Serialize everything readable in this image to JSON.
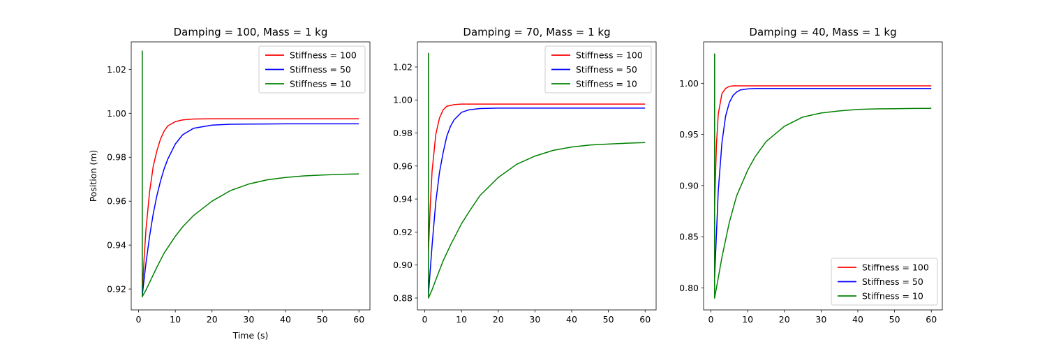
{
  "chart_data": [
    {
      "type": "line",
      "title": "Damping = 100, Mass = 1 kg",
      "xlabel": "Time (s)",
      "ylabel": "Position (m)",
      "xlim": [
        -2,
        63
      ],
      "ylim": [
        0.9105,
        1.0325
      ],
      "xticks": [
        0,
        10,
        20,
        30,
        40,
        50,
        60
      ],
      "yticks": [
        0.92,
        0.94,
        0.96,
        0.98,
        1.0,
        1.02
      ],
      "ytick_labels": [
        "0.92",
        "0.94",
        "0.96",
        "0.98",
        "1.00",
        "1.02"
      ],
      "legend": "top-right",
      "series": [
        {
          "name": "Stiffness = 100",
          "color": "#ff0000",
          "points": [
            [
              1.0,
              1.0285
            ],
            [
              1.0,
              0.9165
            ],
            [
              1.5,
              0.9337
            ],
            [
              2,
              0.9468
            ],
            [
              3,
              0.9643
            ],
            [
              4,
              0.9759
            ],
            [
              5,
              0.983
            ],
            [
              6,
              0.9884
            ],
            [
              7,
              0.992
            ],
            [
              8,
              0.9943
            ],
            [
              10,
              0.9962
            ],
            [
              12,
              0.997
            ],
            [
              15,
              0.9974
            ],
            [
              20,
              0.9975
            ],
            [
              30,
              0.9975
            ],
            [
              40,
              0.9975
            ],
            [
              50,
              0.9975
            ],
            [
              60,
              0.9975
            ]
          ]
        },
        {
          "name": "Stiffness = 50",
          "color": "#0000ff",
          "points": [
            [
              1.0,
              1.0285
            ],
            [
              1.0,
              0.917
            ],
            [
              2,
              0.9316
            ],
            [
              3,
              0.944
            ],
            [
              4,
              0.9543
            ],
            [
              5,
              0.9626
            ],
            [
              6,
              0.9693
            ],
            [
              7,
              0.9749
            ],
            [
              8,
              0.9793
            ],
            [
              10,
              0.986
            ],
            [
              12,
              0.9902
            ],
            [
              15,
              0.9932
            ],
            [
              20,
              0.9946
            ],
            [
              25,
              0.995
            ],
            [
              30,
              0.9951
            ],
            [
              40,
              0.9952
            ],
            [
              50,
              0.9952
            ],
            [
              60,
              0.9952
            ]
          ]
        },
        {
          "name": "Stiffness = 10",
          "color": "#008000",
          "points": [
            [
              1.0,
              1.0285
            ],
            [
              1.0,
              0.9165
            ],
            [
              2,
              0.9195
            ],
            [
              3,
              0.923
            ],
            [
              5,
              0.93
            ],
            [
              7,
              0.9365
            ],
            [
              10,
              0.944
            ],
            [
              12,
              0.9483
            ],
            [
              15,
              0.9535
            ],
            [
              20,
              0.96
            ],
            [
              25,
              0.9648
            ],
            [
              30,
              0.9678
            ],
            [
              35,
              0.9697
            ],
            [
              40,
              0.9708
            ],
            [
              45,
              0.9715
            ],
            [
              50,
              0.9719
            ],
            [
              55,
              0.9722
            ],
            [
              60,
              0.9724
            ]
          ]
        }
      ]
    },
    {
      "type": "line",
      "title": "Damping = 70, Mass = 1 kg",
      "xlabel": "",
      "ylabel": "",
      "xlim": [
        -2,
        63
      ],
      "ylim": [
        0.8728,
        1.0352
      ],
      "xticks": [
        0,
        10,
        20,
        30,
        40,
        50,
        60
      ],
      "yticks": [
        0.88,
        0.9,
        0.92,
        0.94,
        0.96,
        0.98,
        1.0,
        1.02
      ],
      "ytick_labels": [
        "0.88",
        "0.90",
        "0.92",
        "0.94",
        "0.96",
        "0.98",
        "1.00",
        "1.02"
      ],
      "legend": "top-right",
      "series": [
        {
          "name": "Stiffness = 100",
          "color": "#ff0000",
          "points": [
            [
              1.0,
              1.0285
            ],
            [
              1.0,
              0.908
            ],
            [
              1.5,
              0.936
            ],
            [
              2,
              0.957
            ],
            [
              3,
              0.979
            ],
            [
              4,
              0.989
            ],
            [
              5,
              0.994
            ],
            [
              6,
              0.9962
            ],
            [
              8,
              0.9972
            ],
            [
              10,
              0.9975
            ],
            [
              20,
              0.9975
            ],
            [
              30,
              0.9975
            ],
            [
              40,
              0.9975
            ],
            [
              50,
              0.9975
            ],
            [
              60,
              0.9975
            ]
          ]
        },
        {
          "name": "Stiffness = 50",
          "color": "#0000ff",
          "points": [
            [
              1.0,
              1.0285
            ],
            [
              1.0,
              0.882
            ],
            [
              2,
              0.912
            ],
            [
              3,
              0.938
            ],
            [
              4,
              0.956
            ],
            [
              5,
              0.968
            ],
            [
              6,
              0.978
            ],
            [
              7,
              0.984
            ],
            [
              8,
              0.988
            ],
            [
              10,
              0.9925
            ],
            [
              12,
              0.994
            ],
            [
              15,
              0.9948
            ],
            [
              20,
              0.9951
            ],
            [
              30,
              0.9951
            ],
            [
              40,
              0.9951
            ],
            [
              50,
              0.9951
            ],
            [
              60,
              0.9951
            ]
          ]
        },
        {
          "name": "Stiffness = 10",
          "color": "#008000",
          "points": [
            [
              1.0,
              1.0285
            ],
            [
              1.0,
              0.88
            ],
            [
              2,
              0.885
            ],
            [
              3,
              0.891
            ],
            [
              5,
              0.9025
            ],
            [
              7,
              0.912
            ],
            [
              10,
              0.925
            ],
            [
              12,
              0.932
            ],
            [
              15,
              0.942
            ],
            [
              20,
              0.953
            ],
            [
              25,
              0.961
            ],
            [
              30,
              0.966
            ],
            [
              35,
              0.9695
            ],
            [
              40,
              0.9715
            ],
            [
              45,
              0.9727
            ],
            [
              50,
              0.9733
            ],
            [
              55,
              0.9738
            ],
            [
              60,
              0.9742
            ]
          ]
        }
      ]
    },
    {
      "type": "line",
      "title": "Damping = 40, Mass = 1 kg",
      "xlabel": "",
      "ylabel": "",
      "xlim": [
        -2,
        63
      ],
      "ylim": [
        0.7785,
        1.0405
      ],
      "xticks": [
        0,
        10,
        20,
        30,
        40,
        50,
        60
      ],
      "yticks": [
        0.8,
        0.85,
        0.9,
        0.95,
        1.0
      ],
      "ytick_labels": [
        "0.80",
        "0.85",
        "0.90",
        "0.95",
        "1.00"
      ],
      "legend": "bottom-right",
      "series": [
        {
          "name": "Stiffness = 100",
          "color": "#ff0000",
          "points": [
            [
              1.0,
              1.029
            ],
            [
              1.0,
              0.88
            ],
            [
              1.5,
              0.94
            ],
            [
              2,
              0.97
            ],
            [
              3,
              0.99
            ],
            [
              4,
              0.995
            ],
            [
              5,
              0.997
            ],
            [
              6,
              0.9975
            ],
            [
              10,
              0.9975
            ],
            [
              20,
              0.9975
            ],
            [
              30,
              0.9975
            ],
            [
              40,
              0.9975
            ],
            [
              50,
              0.9975
            ],
            [
              60,
              0.9975
            ]
          ]
        },
        {
          "name": "Stiffness = 50",
          "color": "#0000ff",
          "points": [
            [
              1.0,
              1.029
            ],
            [
              1.0,
              0.81
            ],
            [
              2,
              0.895
            ],
            [
              3,
              0.942
            ],
            [
              4,
              0.968
            ],
            [
              5,
              0.981
            ],
            [
              6,
              0.988
            ],
            [
              7,
              0.9915
            ],
            [
              8,
              0.9935
            ],
            [
              10,
              0.9945
            ],
            [
              12,
              0.995
            ],
            [
              20,
              0.995
            ],
            [
              30,
              0.995
            ],
            [
              40,
              0.995
            ],
            [
              50,
              0.995
            ],
            [
              60,
              0.995
            ]
          ]
        },
        {
          "name": "Stiffness = 10",
          "color": "#008000",
          "points": [
            [
              1.0,
              1.029
            ],
            [
              1.0,
              0.79
            ],
            [
              2,
              0.81
            ],
            [
              3,
              0.83
            ],
            [
              5,
              0.864
            ],
            [
              7,
              0.89
            ],
            [
              10,
              0.915
            ],
            [
              12,
              0.928
            ],
            [
              15,
              0.943
            ],
            [
              20,
              0.958
            ],
            [
              25,
              0.967
            ],
            [
              30,
              0.971
            ],
            [
              35,
              0.973
            ],
            [
              40,
              0.9745
            ],
            [
              45,
              0.975
            ],
            [
              50,
              0.9752
            ],
            [
              55,
              0.9754
            ],
            [
              60,
              0.9755
            ]
          ]
        }
      ]
    }
  ]
}
